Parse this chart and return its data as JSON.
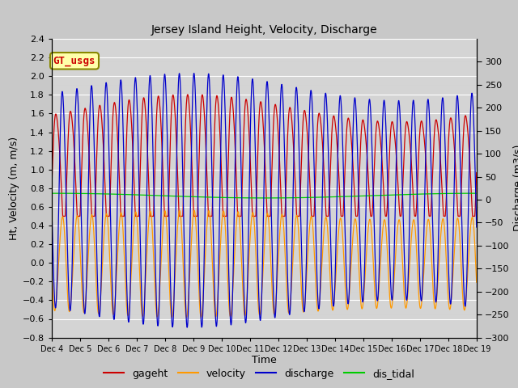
{
  "title": "Jersey Island Height, Velocity, Discharge",
  "xlabel": "Time",
  "ylabel_left": "Ht, Velocity (m, m/s)",
  "ylabel_right": "Discharge (m3/s)",
  "ylim_left": [
    -0.8,
    2.4
  ],
  "ylim_right": [
    -300,
    350
  ],
  "tidal_period_hours": 12.4,
  "fig_bg_color": "#c8c8c8",
  "plot_bg_color": "#d4d4d4",
  "colors": {
    "gageht": "#cc0000",
    "velocity": "#ff9900",
    "discharge": "#0000cc",
    "dis_tidal": "#00cc00"
  },
  "legend_label": "GT_usgs",
  "legend_bg": "#ffffaa",
  "legend_border": "#888800"
}
